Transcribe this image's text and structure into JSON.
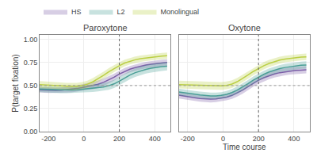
{
  "chart_data": [
    {
      "type": "line",
      "title": "Paroxytone",
      "ylabel": "P(target fixation)",
      "x": [
        -250,
        -220,
        -190,
        -160,
        -130,
        -100,
        -70,
        -40,
        -10,
        20,
        50,
        80,
        110,
        140,
        170,
        200,
        230,
        260,
        290,
        320,
        350,
        380,
        410,
        440,
        470
      ],
      "xlim": [
        -250,
        490
      ],
      "ylim": [
        0.0,
        1.05
      ],
      "xticks": [
        -200,
        0,
        200,
        400
      ],
      "yticks": [
        {
          "value": 0.0,
          "label": "0.00"
        },
        0.25,
        {
          "value": 0.5,
          "label": "0.50"
        },
        0.75,
        {
          "value": 1.0,
          "label": "1.00"
        }
      ],
      "grid": true,
      "legend": "upper left",
      "hline": 0.5,
      "vline": 200,
      "series": [
        {
          "name": "HS",
          "color": "#7B5EA7",
          "values": [
            0.455,
            0.452,
            0.45,
            0.448,
            0.45,
            0.455,
            0.46,
            0.468,
            0.478,
            0.49,
            0.5,
            0.515,
            0.535,
            0.56,
            0.59,
            0.625,
            0.655,
            0.678,
            0.695,
            0.71,
            0.722,
            0.732,
            0.74,
            0.746,
            0.75
          ],
          "upper": [
            0.485,
            0.482,
            0.48,
            0.478,
            0.48,
            0.486,
            0.493,
            0.502,
            0.514,
            0.527,
            0.54,
            0.556,
            0.576,
            0.6,
            0.628,
            0.66,
            0.69,
            0.712,
            0.73,
            0.745,
            0.758,
            0.768,
            0.776,
            0.782,
            0.786
          ],
          "lower": [
            0.425,
            0.422,
            0.42,
            0.418,
            0.42,
            0.424,
            0.427,
            0.434,
            0.442,
            0.453,
            0.46,
            0.474,
            0.494,
            0.52,
            0.552,
            0.59,
            0.62,
            0.644,
            0.66,
            0.675,
            0.686,
            0.696,
            0.704,
            0.71,
            0.714
          ]
        },
        {
          "name": "L2",
          "color": "#4A9E96",
          "values": [
            0.462,
            0.46,
            0.457,
            0.453,
            0.45,
            0.45,
            0.452,
            0.455,
            0.46,
            0.465,
            0.47,
            0.476,
            0.485,
            0.498,
            0.518,
            0.548,
            0.582,
            0.614,
            0.64,
            0.66,
            0.676,
            0.688,
            0.698,
            0.705,
            0.71
          ],
          "upper": [
            0.495,
            0.493,
            0.49,
            0.486,
            0.483,
            0.483,
            0.486,
            0.49,
            0.496,
            0.503,
            0.509,
            0.516,
            0.527,
            0.542,
            0.562,
            0.594,
            0.628,
            0.66,
            0.686,
            0.706,
            0.722,
            0.734,
            0.744,
            0.751,
            0.756
          ],
          "lower": [
            0.429,
            0.427,
            0.424,
            0.42,
            0.417,
            0.417,
            0.418,
            0.42,
            0.424,
            0.427,
            0.431,
            0.436,
            0.443,
            0.454,
            0.474,
            0.502,
            0.536,
            0.568,
            0.594,
            0.614,
            0.63,
            0.642,
            0.652,
            0.659,
            0.664
          ]
        },
        {
          "name": "Monolingual",
          "color": "#BBCF45",
          "values": [
            0.51,
            0.508,
            0.505,
            0.5,
            0.496,
            0.492,
            0.49,
            0.492,
            0.5,
            0.515,
            0.54,
            0.572,
            0.61,
            0.648,
            0.684,
            0.716,
            0.744,
            0.765,
            0.78,
            0.792,
            0.8,
            0.808,
            0.815,
            0.82,
            0.824
          ],
          "upper": [
            0.548,
            0.546,
            0.543,
            0.538,
            0.534,
            0.53,
            0.528,
            0.53,
            0.538,
            0.554,
            0.58,
            0.612,
            0.65,
            0.688,
            0.722,
            0.754,
            0.78,
            0.8,
            0.815,
            0.826,
            0.834,
            0.842,
            0.849,
            0.854,
            0.858
          ],
          "lower": [
            0.472,
            0.47,
            0.467,
            0.462,
            0.458,
            0.454,
            0.452,
            0.454,
            0.462,
            0.476,
            0.5,
            0.532,
            0.57,
            0.608,
            0.646,
            0.678,
            0.708,
            0.73,
            0.745,
            0.758,
            0.766,
            0.774,
            0.781,
            0.786,
            0.79
          ]
        }
      ]
    },
    {
      "type": "line",
      "title": "Oxytone",
      "xlabel": "Time course",
      "x": [
        -250,
        -220,
        -190,
        -160,
        -130,
        -100,
        -70,
        -40,
        -10,
        20,
        50,
        80,
        110,
        140,
        170,
        200,
        230,
        260,
        290,
        320,
        350,
        380,
        410,
        440,
        470
      ],
      "xlim": [
        -250,
        490
      ],
      "ylim": [
        0.0,
        1.05
      ],
      "xticks": [
        -200,
        0,
        200,
        400
      ],
      "yticks": [
        {
          "value": 0.0,
          "label": "0.00"
        },
        0.25,
        {
          "value": 0.5,
          "label": "0.50"
        },
        0.75,
        {
          "value": 1.0,
          "label": "1.00"
        }
      ],
      "grid": true,
      "tick_labels": "x",
      "hline": 0.5,
      "vline": 200,
      "series": [
        {
          "name": "HS",
          "color": "#7B5EA7",
          "values": [
            0.395,
            0.388,
            0.378,
            0.368,
            0.36,
            0.355,
            0.352,
            0.355,
            0.362,
            0.375,
            0.393,
            0.418,
            0.45,
            0.488,
            0.525,
            0.558,
            0.585,
            0.608,
            0.626,
            0.64,
            0.65,
            0.658,
            0.664,
            0.668,
            0.671
          ],
          "upper": [
            0.43,
            0.423,
            0.413,
            0.403,
            0.395,
            0.39,
            0.387,
            0.39,
            0.397,
            0.41,
            0.43,
            0.456,
            0.49,
            0.528,
            0.564,
            0.597,
            0.624,
            0.647,
            0.665,
            0.679,
            0.689,
            0.697,
            0.703,
            0.707,
            0.71
          ],
          "lower": [
            0.36,
            0.353,
            0.343,
            0.333,
            0.325,
            0.32,
            0.317,
            0.32,
            0.327,
            0.34,
            0.356,
            0.38,
            0.41,
            0.448,
            0.486,
            0.519,
            0.546,
            0.569,
            0.587,
            0.601,
            0.611,
            0.619,
            0.625,
            0.629,
            0.632
          ]
        },
        {
          "name": "L2",
          "color": "#4A9E96",
          "values": [
            0.43,
            0.424,
            0.415,
            0.406,
            0.398,
            0.392,
            0.388,
            0.388,
            0.393,
            0.405,
            0.424,
            0.45,
            0.482,
            0.52,
            0.558,
            0.592,
            0.622,
            0.648,
            0.668,
            0.684,
            0.696,
            0.706,
            0.714,
            0.72,
            0.724
          ],
          "upper": [
            0.466,
            0.46,
            0.451,
            0.442,
            0.434,
            0.428,
            0.424,
            0.424,
            0.429,
            0.442,
            0.462,
            0.49,
            0.522,
            0.56,
            0.598,
            0.632,
            0.661,
            0.687,
            0.707,
            0.723,
            0.735,
            0.745,
            0.753,
            0.759,
            0.763
          ],
          "lower": [
            0.394,
            0.388,
            0.379,
            0.37,
            0.362,
            0.356,
            0.352,
            0.352,
            0.357,
            0.368,
            0.386,
            0.41,
            0.442,
            0.48,
            0.518,
            0.552,
            0.583,
            0.609,
            0.629,
            0.645,
            0.657,
            0.667,
            0.675,
            0.681,
            0.685
          ]
        },
        {
          "name": "Monolingual",
          "color": "#BBCF45",
          "values": [
            0.51,
            0.508,
            0.506,
            0.504,
            0.502,
            0.5,
            0.498,
            0.496,
            0.496,
            0.502,
            0.516,
            0.542,
            0.576,
            0.614,
            0.652,
            0.686,
            0.716,
            0.74,
            0.76,
            0.776,
            0.788,
            0.796,
            0.802,
            0.808,
            0.812
          ],
          "upper": [
            0.552,
            0.55,
            0.548,
            0.546,
            0.544,
            0.542,
            0.54,
            0.538,
            0.538,
            0.544,
            0.558,
            0.584,
            0.618,
            0.656,
            0.693,
            0.727,
            0.756,
            0.779,
            0.798,
            0.813,
            0.824,
            0.832,
            0.838,
            0.844,
            0.848
          ],
          "lower": [
            0.468,
            0.466,
            0.464,
            0.462,
            0.46,
            0.458,
            0.456,
            0.454,
            0.454,
            0.46,
            0.474,
            0.5,
            0.534,
            0.572,
            0.611,
            0.645,
            0.676,
            0.701,
            0.722,
            0.739,
            0.752,
            0.76,
            0.766,
            0.772,
            0.776
          ]
        }
      ]
    }
  ]
}
